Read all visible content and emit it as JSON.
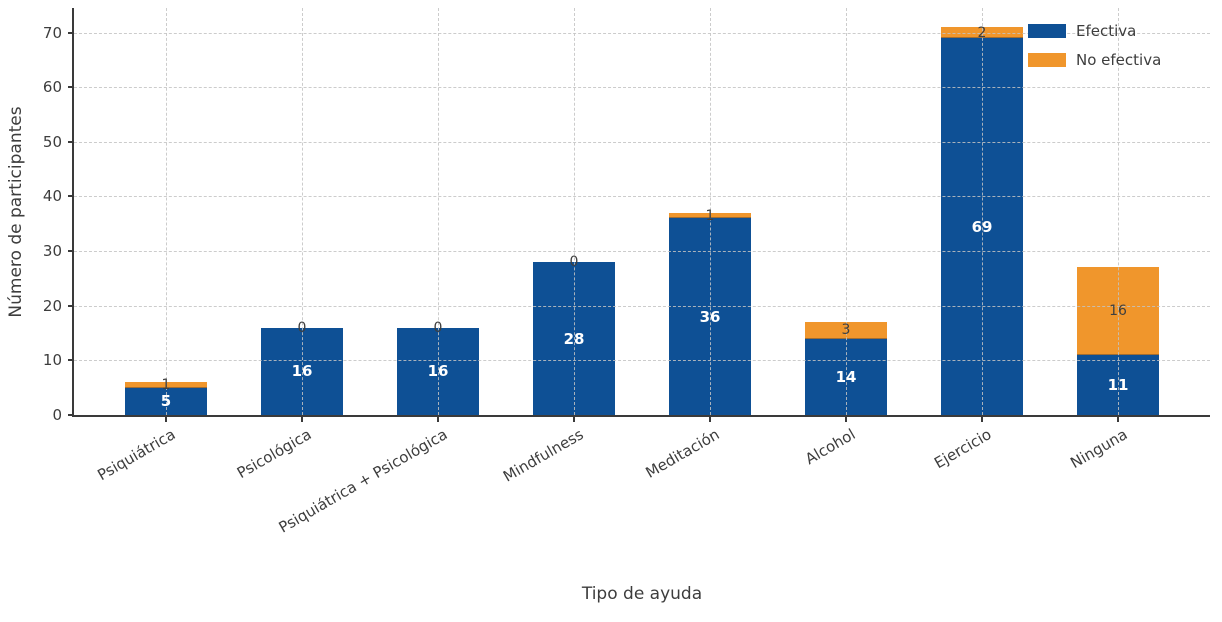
{
  "chart_data": {
    "type": "bar",
    "stacked": true,
    "title": "",
    "xlabel": "Tipo de ayuda",
    "ylabel": "Número de participantes",
    "categories": [
      "Psiquiátrica",
      "Psicológica",
      "Psiquiátrica + Psicológica",
      "Mindfulness",
      "Meditación",
      "Alcohol",
      "Ejercicio",
      "Ninguna"
    ],
    "series": [
      {
        "name": "Efectiva",
        "color": "#0e5095",
        "values": [
          5,
          16,
          16,
          28,
          36,
          14,
          69,
          11
        ]
      },
      {
        "name": "No efectiva",
        "color": "#f0962c",
        "values": [
          1,
          0,
          0,
          0,
          1,
          3,
          2,
          16
        ]
      }
    ],
    "yticks": [
      0,
      10,
      20,
      30,
      40,
      50,
      60,
      70
    ],
    "ylim": [
      0,
      74.5
    ],
    "grid": "dashed",
    "grid_color": "#c3c3c3",
    "axis_color": "#3a3a3a",
    "bar_label_inside_color": "#ffffff",
    "bar_label_outside_color": "#3f3f3f",
    "legend_position": "upper-right",
    "legend_labels": [
      "Efectiva",
      "No efectiva"
    ]
  }
}
